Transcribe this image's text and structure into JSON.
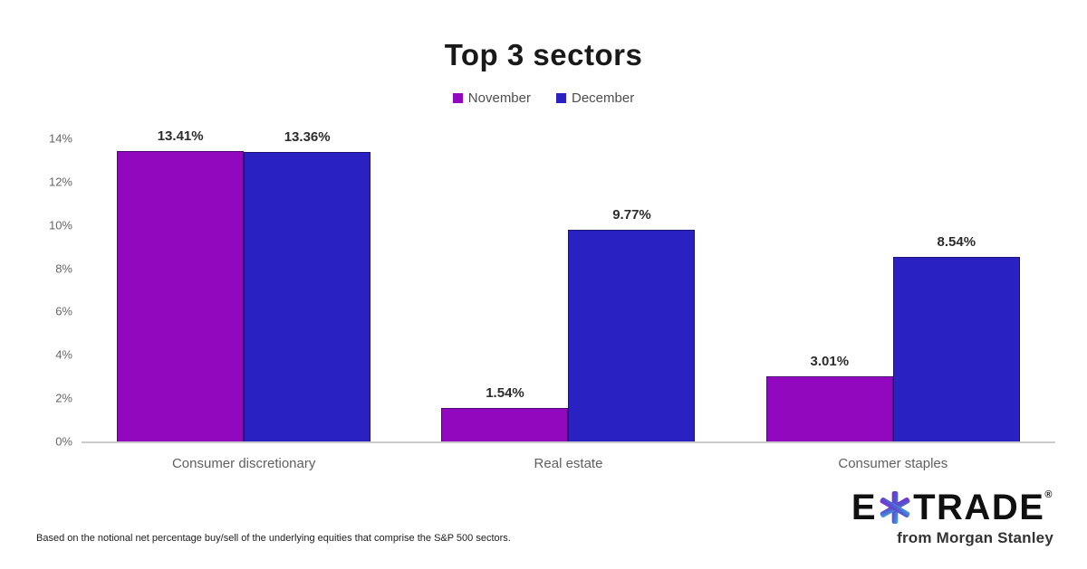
{
  "chart_data": {
    "type": "bar",
    "title": "Top 3 sectors",
    "categories": [
      "Consumer discretionary",
      "Real estate",
      "Consumer staples"
    ],
    "series": [
      {
        "name": "November",
        "color": "#9208BE",
        "values": [
          13.41,
          1.54,
          3.01
        ]
      },
      {
        "name": "December",
        "color": "#2A21C2",
        "values": [
          13.36,
          9.77,
          8.54
        ]
      }
    ],
    "value_labels": [
      [
        "13.41%",
        "13.36%"
      ],
      [
        "1.54%",
        "9.77%"
      ],
      [
        "3.01%",
        "8.54%"
      ]
    ],
    "xlabel": "",
    "ylabel": "",
    "ylim": [
      0,
      14
    ],
    "ytick_step": 2,
    "ytick_labels": [
      "0%",
      "2%",
      "4%",
      "6%",
      "8%",
      "10%",
      "12%",
      "14%"
    ],
    "grid": false,
    "legend_position": "top"
  },
  "footnote": "Based on the notional net percentage buy/sell of the underlying equities that comprise the S&P 500 sectors.",
  "logo": {
    "brand_left": "E",
    "brand_right": "TRADE",
    "registered": "®",
    "tagline": "from Morgan Stanley",
    "asterisk_gradient_start": "#7A2BC8",
    "asterisk_gradient_mid": "#5458D2",
    "asterisk_gradient_end": "#3FA9E0"
  }
}
